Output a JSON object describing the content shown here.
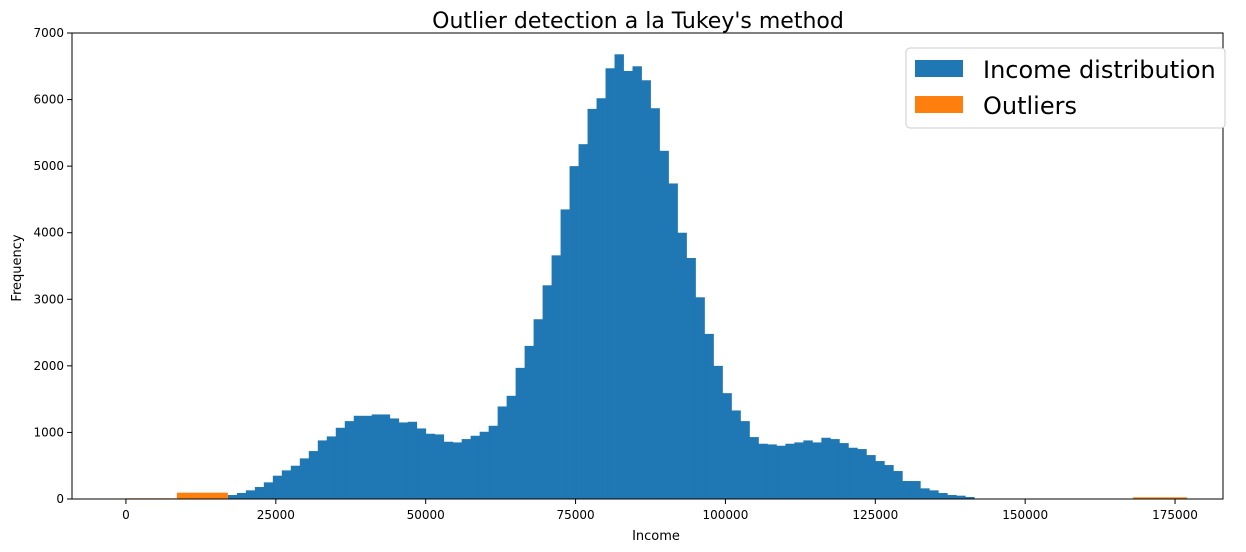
{
  "chart_data": {
    "type": "bar",
    "title": "Outlier detection a la Tukey's method",
    "xlabel": "Income",
    "ylabel": "Frequency",
    "xlim": [
      -9000,
      183000
    ],
    "ylim": [
      0,
      7000
    ],
    "xticks": [
      0,
      25000,
      50000,
      75000,
      100000,
      125000,
      150000,
      175000
    ],
    "yticks": [
      0,
      1000,
      2000,
      3000,
      4000,
      5000,
      6000,
      7000
    ],
    "legend_position": "top-right",
    "grid": false,
    "series": [
      {
        "name": "Income distribution",
        "color": "#1f77b4",
        "bin_start": 17000,
        "bin_width": 1500,
        "values": [
          60,
          90,
          130,
          180,
          250,
          350,
          430,
          500,
          610,
          720,
          880,
          940,
          1070,
          1170,
          1250,
          1250,
          1270,
          1270,
          1210,
          1150,
          1160,
          1060,
          980,
          970,
          860,
          850,
          900,
          950,
          1010,
          1100,
          1390,
          1550,
          1970,
          2300,
          2700,
          3210,
          3660,
          4350,
          5000,
          5330,
          5860,
          6020,
          6470,
          6680,
          6430,
          6500,
          6290,
          5870,
          5230,
          4740,
          4000,
          3620,
          3030,
          2480,
          2000,
          1590,
          1330,
          1170,
          930,
          830,
          820,
          800,
          830,
          850,
          880,
          850,
          920,
          900,
          840,
          770,
          750,
          660,
          570,
          510,
          420,
          270,
          270,
          160,
          130,
          90,
          60,
          50,
          30
        ]
      },
      {
        "name": "Outliers",
        "color": "#ff7f0e",
        "bins": [
          {
            "start": 0,
            "end": 8500,
            "value": 10
          },
          {
            "start": 8500,
            "end": 17000,
            "value": 95
          },
          {
            "start": 168000,
            "end": 177000,
            "value": 25
          }
        ]
      }
    ]
  }
}
